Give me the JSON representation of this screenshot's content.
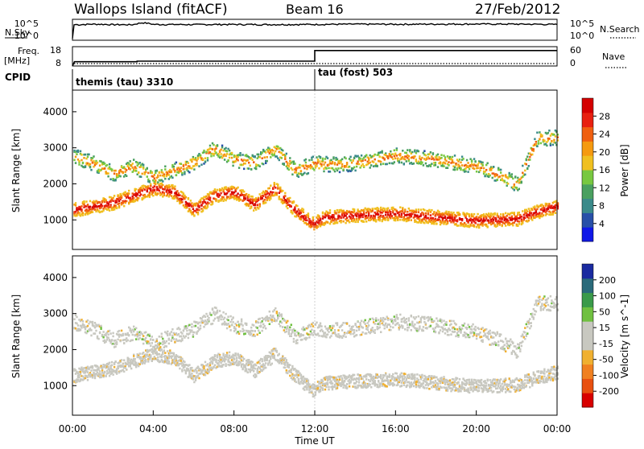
{
  "header": {
    "station": "Wallops Island (fitACF)",
    "beam": "Beam 16",
    "date": "27/Feb/2012"
  },
  "status_panels": {
    "nsky_label": "N.Sky",
    "nsearch_label": "N.Search",
    "freq_label_1": "Freq.",
    "freq_label_2": "[MHz]",
    "nave_label": "Nave",
    "cpid_label": "CPID",
    "noise_ticks": [
      "10^5",
      "10^0"
    ],
    "freq_ticks": [
      "18",
      "8"
    ],
    "nave_ticks": [
      "60",
      "0"
    ],
    "cpid_segments": [
      {
        "label": "themis (tau) 3310",
        "start_hour": 0,
        "end_hour": 12
      },
      {
        "label": "tau (fost) 503",
        "start_hour": 12,
        "end_hour": 24
      }
    ]
  },
  "colors": {
    "power": [
      "#1018e8",
      "#2850a8",
      "#3a8a8a",
      "#4aa060",
      "#78c840",
      "#f0c020",
      "#f59a10",
      "#f06010",
      "#e82010",
      "#d40000"
    ],
    "velocity": [
      "#1a2aa0",
      "#2a6a7a",
      "#3a9a4a",
      "#70c040",
      "#c8c8c0",
      "#c8c8c0",
      "#f0b030",
      "#f08020",
      "#e85010",
      "#d80000"
    ]
  },
  "chart_data": [
    {
      "type": "line",
      "title": "Wallops Island (fitACF)  Beam 16  27/Feb/2012",
      "ylabel": "N.Sky",
      "y_right_label": "N.Search",
      "yscale": "log",
      "ylim": [
        1,
        100000
      ],
      "x_unit": "hours UT",
      "xlim": [
        0,
        24
      ],
      "series": [
        {
          "name": "N.Sky",
          "x": [
            0,
            0.1,
            0.3,
            1,
            2,
            3,
            3.5,
            4,
            6,
            8,
            10,
            12,
            14,
            16,
            18,
            20,
            22,
            24
          ],
          "y": [
            1,
            10000,
            8000,
            12000,
            9000,
            8000,
            30000,
            10000,
            9000,
            10000,
            9000,
            10000,
            12000,
            11000,
            12000,
            13000,
            12000,
            10000
          ]
        }
      ]
    },
    {
      "type": "line",
      "ylabel": "Freq. [MHz]",
      "y_right_label": "Nave",
      "ylim": [
        8,
        18
      ],
      "xlim": [
        0,
        24
      ],
      "series": [
        {
          "name": "Freq.",
          "x": [
            0,
            0.1,
            3.2,
            3.2,
            12,
            12,
            24
          ],
          "y": [
            8,
            10.2,
            10.2,
            10.5,
            10.5,
            16,
            16
          ]
        }
      ]
    },
    {
      "type": "heatmap",
      "ylabel": "Slant Range [km]",
      "colorbar_label": "Power [dB]",
      "colorbar_ticks": [
        4,
        8,
        12,
        16,
        20,
        24,
        28
      ],
      "ylim": [
        180,
        4600
      ],
      "y_ticks": [
        1000,
        2000,
        3000,
        4000
      ],
      "xlim": [
        0,
        24
      ],
      "main_echo_band": {
        "hours": [
          0,
          2,
          4,
          5,
          6,
          7,
          8,
          9,
          10,
          11,
          11.9,
          12.5,
          14,
          16,
          18,
          20,
          22,
          23,
          24
        ],
        "range_km": [
          1300,
          1500,
          1900,
          1800,
          1300,
          1700,
          1800,
          1450,
          1900,
          1300,
          900,
          1100,
          1150,
          1200,
          1100,
          1000,
          1050,
          1250,
          1400
        ]
      },
      "upper_echo_band": {
        "hours": [
          0,
          1,
          2,
          3,
          4,
          6,
          7,
          8,
          9,
          10,
          11,
          12,
          13,
          14,
          16,
          18,
          20,
          21,
          22,
          23
        ],
        "range_km": [
          2800,
          2600,
          2300,
          2500,
          2200,
          2600,
          3000,
          2700,
          2600,
          3000,
          2400,
          2600,
          2550,
          2600,
          2800,
          2700,
          2500,
          2300,
          2000,
          3300
        ]
      }
    },
    {
      "type": "heatmap",
      "ylabel": "Slant Range [km]",
      "xlabel": "Time UT",
      "colorbar_label": "Velocity [m s^-1]",
      "colorbar_ticks": [
        200,
        100,
        50,
        15,
        -15,
        -50,
        -100,
        -200
      ],
      "ylim": [
        180,
        4600
      ],
      "y_ticks": [
        1000,
        2000,
        3000,
        4000
      ],
      "xlim": [
        0,
        24
      ],
      "x_ticks": [
        "00:00",
        "04:00",
        "08:00",
        "12:00",
        "16:00",
        "20:00",
        "00:00"
      ]
    }
  ]
}
